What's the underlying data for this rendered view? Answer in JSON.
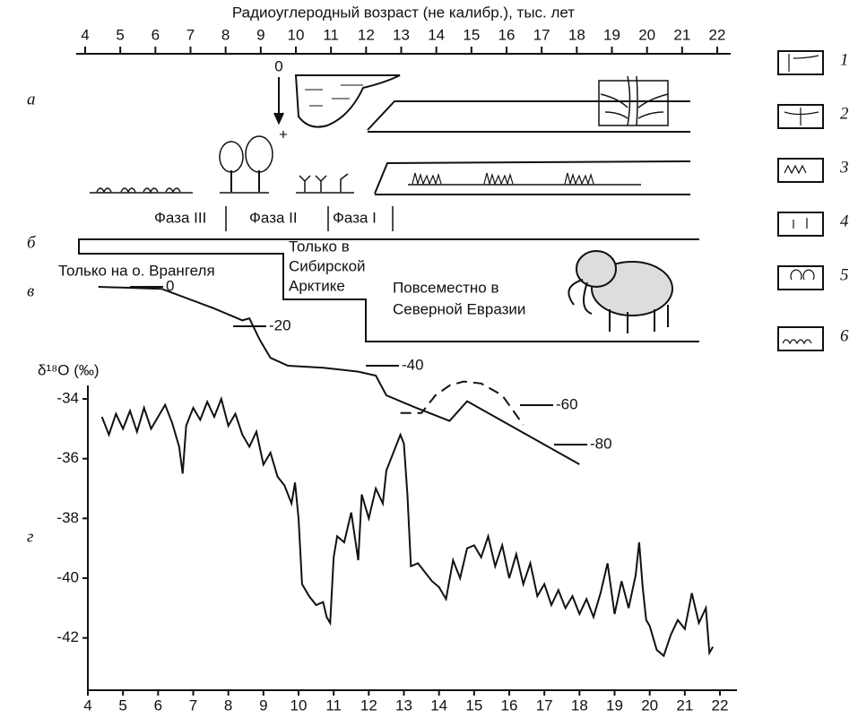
{
  "chart_data": [
    {
      "type": "line",
      "title": "Радиоуглеродный возраст (не калибр.), тыс. лет",
      "ylabel": "δ¹⁸O (‰)",
      "x": [
        4.4,
        4.6,
        4.8,
        5.0,
        5.2,
        5.4,
        5.6,
        5.8,
        6.0,
        6.2,
        6.4,
        6.6,
        6.7,
        6.8,
        7.0,
        7.2,
        7.4,
        7.6,
        7.8,
        8.0,
        8.2,
        8.4,
        8.6,
        8.8,
        9.0,
        9.2,
        9.4,
        9.6,
        9.8,
        9.9,
        10.0,
        10.1,
        10.3,
        10.5,
        10.7,
        10.8,
        10.9,
        11.0,
        11.1,
        11.3,
        11.5,
        11.7,
        11.8,
        12.0,
        12.2,
        12.4,
        12.5,
        12.7,
        12.9,
        13.0,
        13.1,
        13.2,
        13.4,
        13.6,
        13.8,
        14.0,
        14.2,
        14.4,
        14.6,
        14.8,
        15.0,
        15.2,
        15.4,
        15.6,
        15.8,
        16.0,
        16.2,
        16.4,
        16.6,
        16.8,
        17.0,
        17.2,
        17.4,
        17.6,
        17.8,
        18.0,
        18.2,
        18.4,
        18.6,
        18.8,
        19.0,
        19.2,
        19.4,
        19.6,
        19.7,
        19.8,
        19.9,
        20.0,
        20.2,
        20.4,
        20.6,
        20.8,
        21.0,
        21.2,
        21.4,
        21.6,
        21.7,
        21.8
      ],
      "values": [
        -34.6,
        -35.2,
        -34.5,
        -35.0,
        -34.4,
        -35.1,
        -34.3,
        -35.0,
        -34.6,
        -34.2,
        -34.8,
        -35.6,
        -36.5,
        -34.9,
        -34.3,
        -34.7,
        -34.1,
        -34.6,
        -34.0,
        -34.9,
        -34.5,
        -35.2,
        -35.6,
        -35.1,
        -36.2,
        -35.8,
        -36.6,
        -36.9,
        -37.5,
        -36.8,
        -38.0,
        -40.2,
        -40.6,
        -40.9,
        -40.8,
        -41.3,
        -41.5,
        -39.3,
        -38.6,
        -38.8,
        -37.8,
        -39.4,
        -37.2,
        -38.0,
        -37.0,
        -37.5,
        -36.4,
        -35.8,
        -35.2,
        -35.5,
        -37.2,
        -39.6,
        -39.5,
        -39.8,
        -40.1,
        -40.3,
        -40.7,
        -39.4,
        -40.0,
        -39.0,
        -38.9,
        -39.3,
        -38.6,
        -39.6,
        -38.9,
        -40.0,
        -39.2,
        -40.2,
        -39.5,
        -40.6,
        -40.2,
        -40.9,
        -40.4,
        -41.0,
        -40.6,
        -41.2,
        -40.7,
        -41.3,
        -40.5,
        -39.5,
        -41.2,
        -40.1,
        -41.0,
        -39.9,
        -38.8,
        -40.3,
        -41.4,
        -41.6,
        -42.4,
        -42.6,
        -41.9,
        -41.4,
        -41.7,
        -40.5,
        -41.5,
        -41.0,
        -42.5,
        -42.3
      ],
      "color": "#000",
      "xlim": [
        4,
        22
      ],
      "xticks": [
        4,
        5,
        6,
        7,
        8,
        9,
        10,
        11,
        12,
        13,
        14,
        15,
        16,
        17,
        18,
        19,
        20,
        21,
        22
      ],
      "ylim": [
        -43.75,
        -33.55
      ],
      "yticks": [
        -34,
        -36,
        -38,
        -40,
        -42
      ]
    },
    {
      "type": "line",
      "x": [
        4.3,
        6.1,
        7.6,
        8.4,
        8.6,
        8.9,
        9.2,
        9.7,
        10.7,
        11.7,
        12.2,
        12.5,
        13.3,
        14.3,
        14.8,
        15.0,
        18.0
      ],
      "values": [
        0,
        -1,
        -11,
        -17,
        -16,
        -27,
        -36,
        -40,
        -41,
        -43,
        -45,
        -55,
        -61,
        -68,
        -58,
        -60,
        -90
      ],
      "color": "#000",
      "xlim": [
        4,
        22
      ],
      "ylim": [
        -100,
        0
      ],
      "annotations": [
        0,
        -20,
        -40,
        -60,
        -80
      ]
    },
    {
      "type": "line",
      "dashed": true,
      "x": [
        12.9,
        13.5,
        13.9,
        14.3,
        14.7,
        15.2,
        15.8,
        16.4
      ],
      "values": [
        -64,
        -64,
        -55,
        -50,
        -48,
        -49,
        -55,
        -70
      ],
      "color": "#000",
      "xlim": [
        4,
        22
      ],
      "ylim": [
        -100,
        0
      ]
    }
  ],
  "panels": [
    "а",
    "б",
    "в",
    "г"
  ],
  "lake_marks": [
    "0",
    "+"
  ],
  "phases": [
    "Фаза III",
    "Фаза II",
    "Фаза I"
  ],
  "ranges": [
    [
      "Только на о. Врангеля"
    ],
    [
      "Только в",
      "Сибирской",
      "Арктике"
    ],
    [
      "Повсеместно в",
      "Северной Евразии"
    ]
  ],
  "legend": [
    "1",
    "2",
    "3",
    "4",
    "5",
    "6"
  ]
}
